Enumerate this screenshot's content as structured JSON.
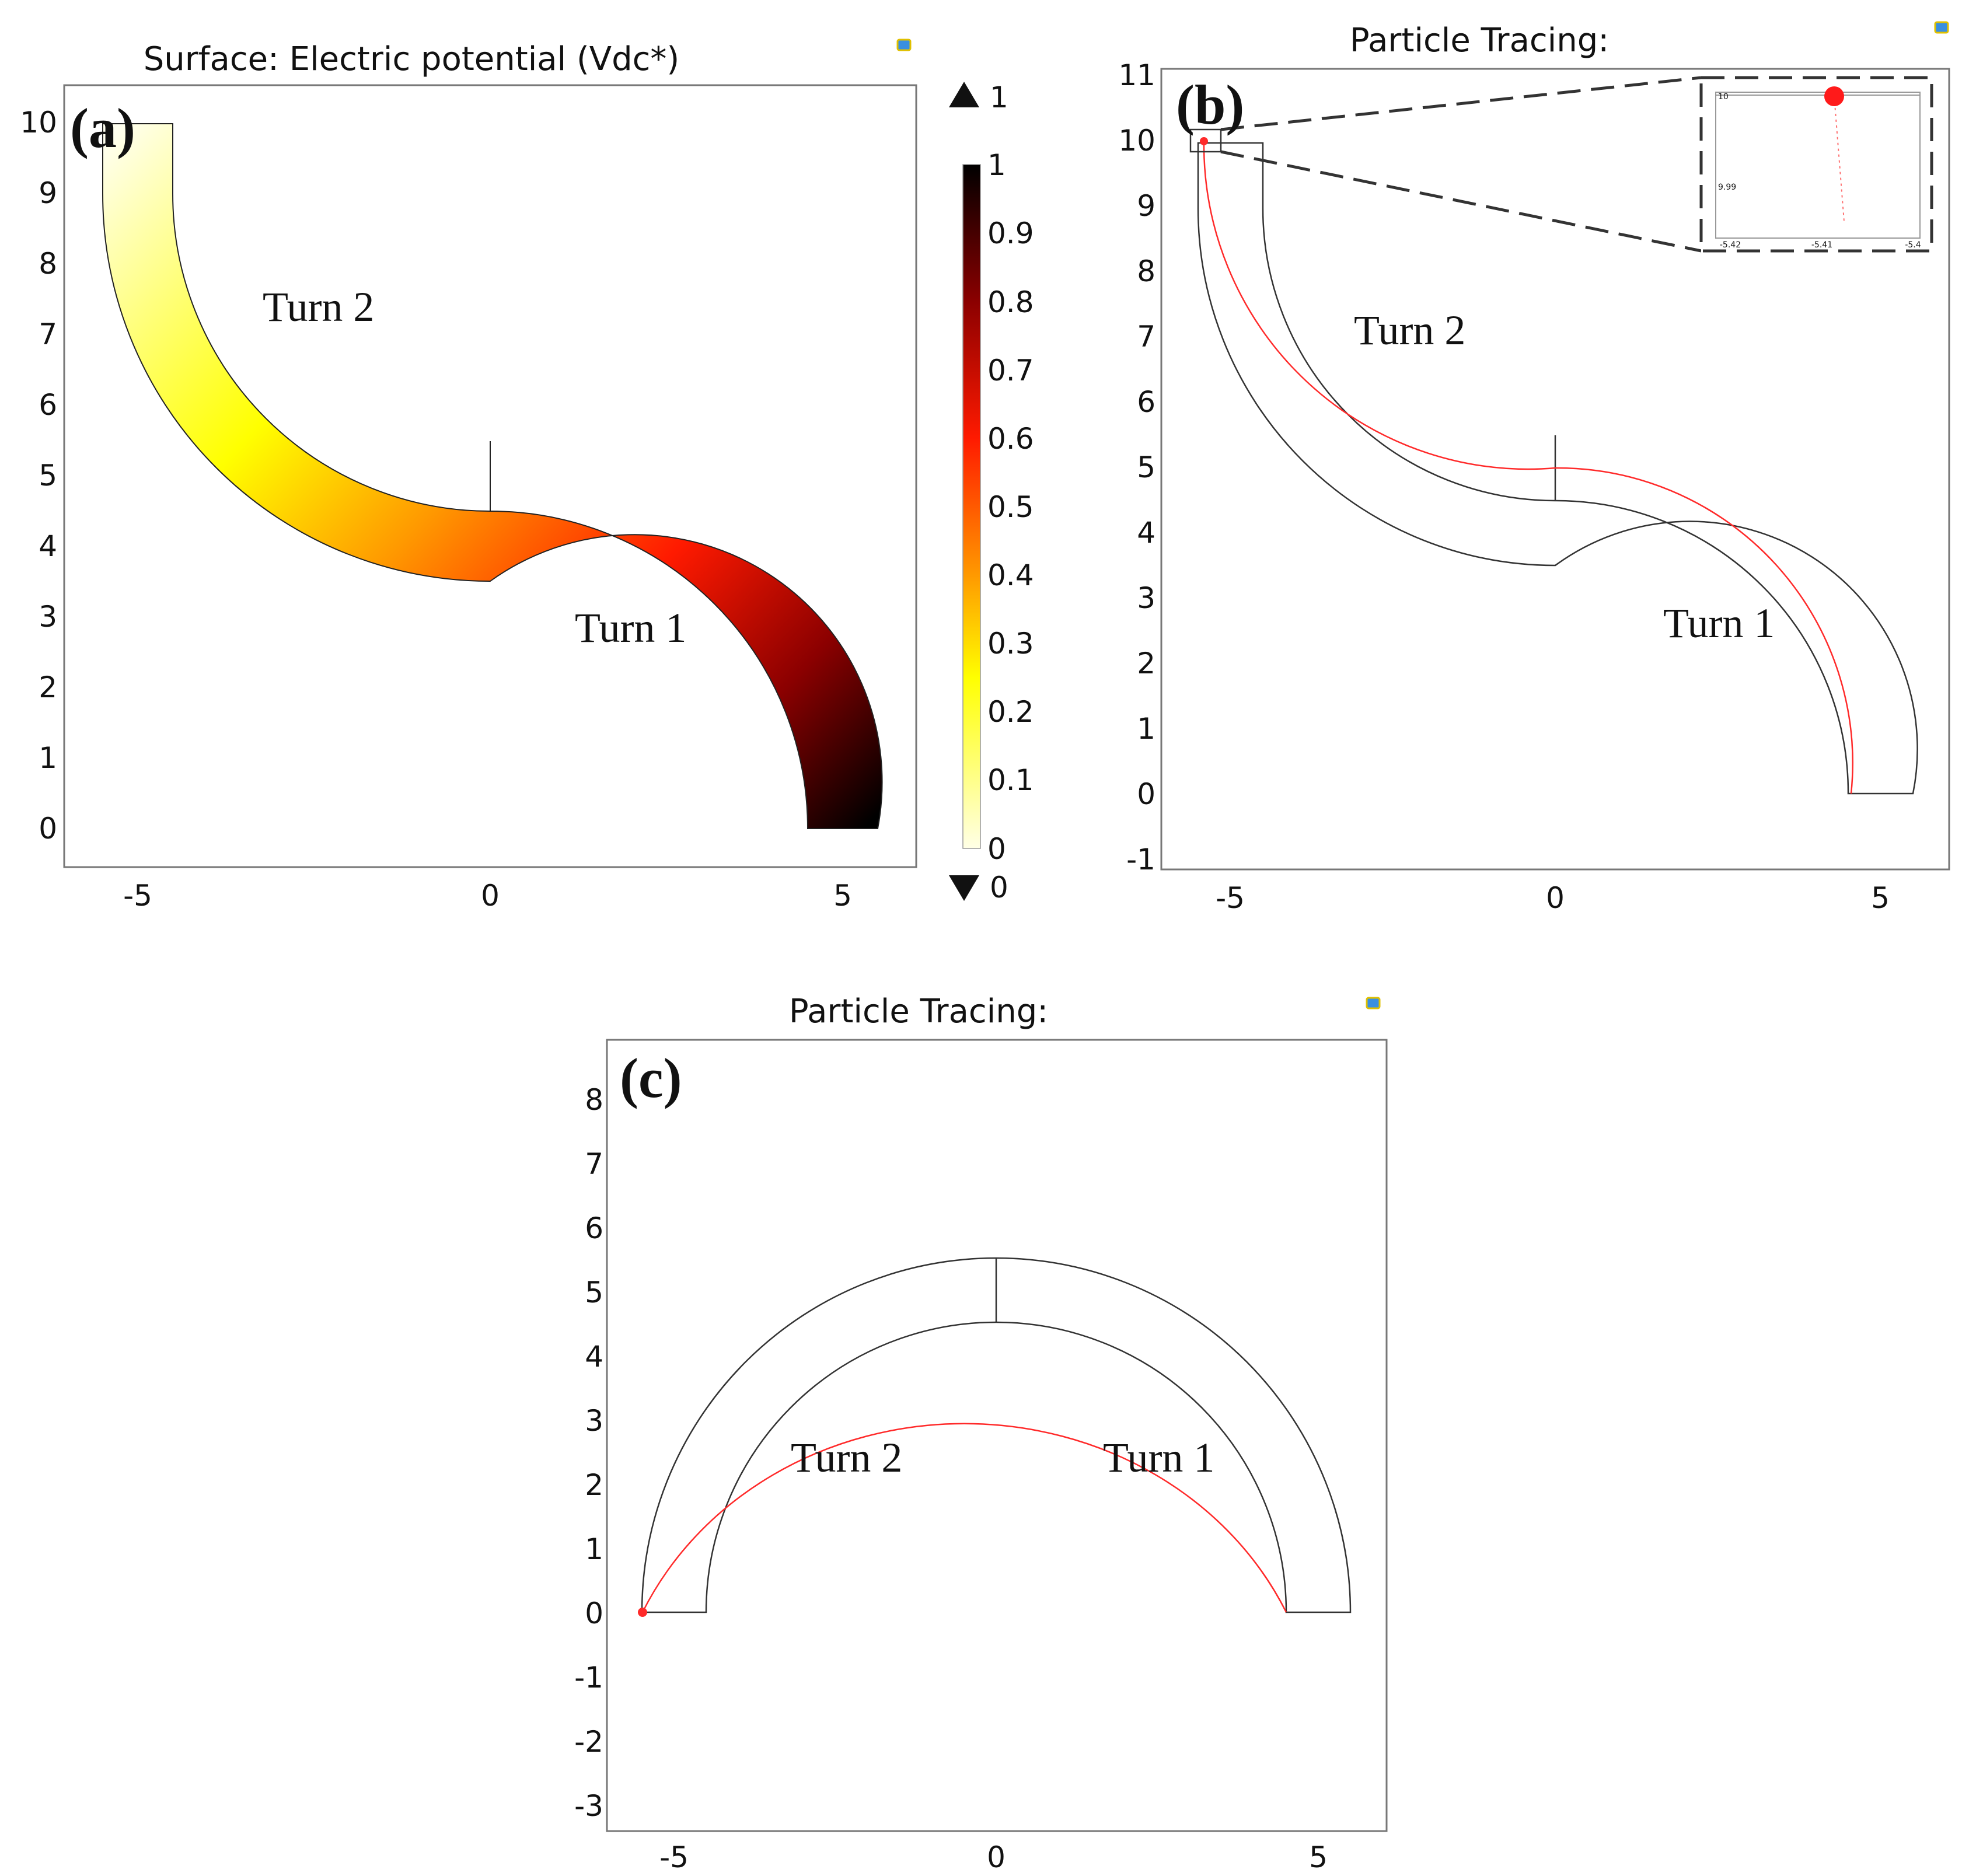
{
  "figure": {
    "panel_a": {
      "label": "(a)",
      "title": "Surface: Electric potential (Vdc*)",
      "x_ticks": [
        "-5",
        "0",
        "5"
      ],
      "y_ticks": [
        "0",
        "1",
        "2",
        "3",
        "4",
        "5",
        "6",
        "7",
        "8",
        "9",
        "10"
      ],
      "turn1_label": "Turn 1",
      "turn2_label": "Turn 2",
      "colorbar": {
        "max_marker": "1",
        "min_marker": "0",
        "ticks": [
          "1",
          "0.9",
          "0.8",
          "0.7",
          "0.6",
          "0.5",
          "0.4",
          "0.3",
          "0.2",
          "0.1",
          "0"
        ],
        "colors": [
          "#000000",
          "#8b0000",
          "#ff1a00",
          "#ff9900",
          "#ffff00",
          "#ffffe6"
        ]
      }
    },
    "panel_b": {
      "label": "(b)",
      "title": "Particle Tracing:",
      "x_ticks": [
        "-5",
        "0",
        "5"
      ],
      "y_ticks": [
        "-1",
        "0",
        "1",
        "2",
        "3",
        "4",
        "5",
        "6",
        "7",
        "8",
        "9",
        "10",
        "11"
      ],
      "turn1_label": "Turn 1",
      "turn2_label": "Turn 2",
      "inset": {
        "y_ticks": [
          "10",
          "9.99"
        ],
        "x_ticks": [
          "-5.42",
          "-5.41",
          "-5.4"
        ]
      }
    },
    "panel_c": {
      "label": "(c)",
      "title": "Particle Tracing:",
      "x_ticks": [
        "-5",
        "0",
        "5"
      ],
      "y_ticks": [
        "-3",
        "-2",
        "-1",
        "0",
        "1",
        "2",
        "3",
        "4",
        "5",
        "6",
        "7",
        "8"
      ],
      "turn1_label": "Turn 1",
      "turn2_label": "Turn 2"
    },
    "particle_color": "#ff2a2a"
  }
}
